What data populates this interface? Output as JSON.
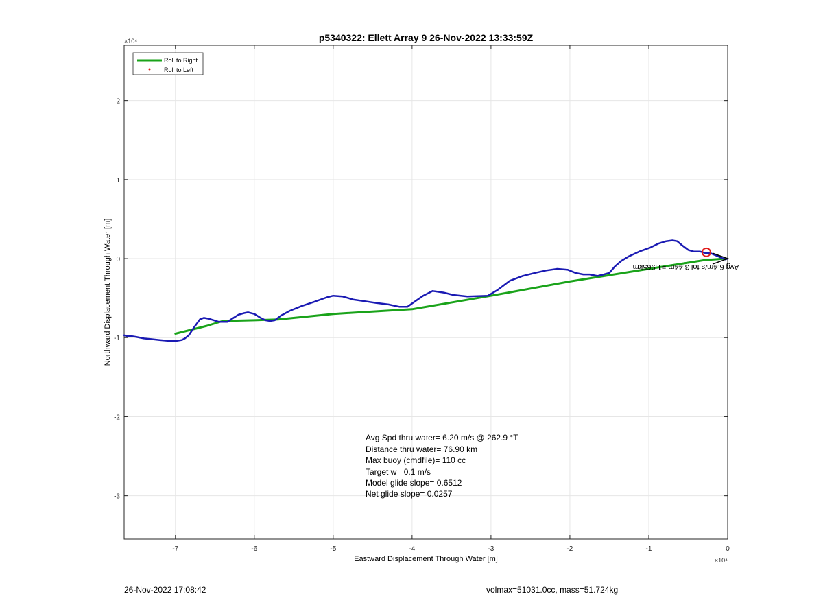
{
  "chart_data": {
    "type": "line",
    "title": "p5340322: Ellett Array 9 26-Nov-2022 13:33:59Z",
    "xlabel": "Eastward Displacement Through Water [m]",
    "ylabel": "Northward Displacement Through Water [m]",
    "x_exponent": "×10⁴",
    "y_exponent": "×10⁴",
    "xlim": [
      -76500,
      0
    ],
    "ylim": [
      -35500,
      27000
    ],
    "xticks": [
      -70000,
      -60000,
      -50000,
      -40000,
      -30000,
      -20000,
      -10000,
      0
    ],
    "xtick_labels": [
      "-7",
      "-6",
      "-5",
      "-4",
      "-3",
      "-2",
      "-1",
      "0"
    ],
    "yticks": [
      -30000,
      -20000,
      -10000,
      0,
      10000,
      20000
    ],
    "ytick_labels": [
      "-3",
      "-2",
      "-1",
      "0",
      "1",
      "2"
    ],
    "grid": true,
    "legend_position": "top-left",
    "legend": [
      {
        "label": "Roll to Right",
        "color": "#1aa31a",
        "marker": "line"
      },
      {
        "label": "Roll to Left",
        "color": "#e01a1a",
        "marker": "dot"
      }
    ],
    "series": [
      {
        "name": "Roll to Right",
        "color": "#1aa31a",
        "x": [
          -250,
          -3000,
          -10000,
          -20000,
          -30000,
          -40000,
          -50000,
          -57000,
          -60000,
          -64000,
          -66000,
          -70000
        ],
        "y": [
          0,
          -200,
          -1300,
          -2900,
          -4700,
          -6400,
          -7000,
          -7700,
          -7800,
          -7900,
          -8500,
          -9500
        ]
      },
      {
        "name": "track",
        "color": "#1a1ab3",
        "x": [
          -76500,
          -76200,
          -75700,
          -75000,
          -74000,
          -73000,
          -72000,
          -71000,
          -70400,
          -69800,
          -69200,
          -68800,
          -68300,
          -67700,
          -66900,
          -66400,
          -65800,
          -64500,
          -63400,
          -62800,
          -62000,
          -61300,
          -60800,
          -60000,
          -59200,
          -58600,
          -58000,
          -57400,
          -56600,
          -55500,
          -54000,
          -52500,
          -50800,
          -50000,
          -48800,
          -47400,
          -46000,
          -44600,
          -43000,
          -41600,
          -40600,
          -39900,
          -38600,
          -37400,
          -36000,
          -34800,
          -33000,
          -30400,
          -29200,
          -27600,
          -26000,
          -24400,
          -23000,
          -21600,
          -20300,
          -19300,
          -18300,
          -17500,
          -16500,
          -15700,
          -15000,
          -14300,
          -13500,
          -12500,
          -11200,
          -9800,
          -8800,
          -7800,
          -7000,
          -6400,
          -5800,
          -5000,
          -4300,
          -3500,
          -2800,
          -2200,
          -1500,
          -800,
          -300,
          0
        ],
        "y": [
          -9700,
          -9800,
          -9800,
          -9900,
          -10100,
          -10200,
          -10300,
          -10400,
          -10400,
          -10400,
          -10300,
          -10100,
          -9700,
          -8800,
          -7700,
          -7500,
          -7600,
          -8000,
          -8000,
          -7600,
          -7100,
          -6900,
          -6800,
          -7000,
          -7500,
          -7800,
          -7900,
          -7800,
          -7200,
          -6600,
          -6000,
          -5500,
          -4900,
          -4700,
          -4800,
          -5200,
          -5400,
          -5600,
          -5800,
          -6100,
          -6100,
          -5600,
          -4700,
          -4100,
          -4300,
          -4600,
          -4800,
          -4700,
          -4000,
          -2800,
          -2200,
          -1800,
          -1500,
          -1300,
          -1400,
          -1800,
          -2000,
          -2000,
          -2200,
          -2000,
          -1800,
          -1000,
          -300,
          300,
          900,
          1400,
          1900,
          2200,
          2300,
          2200,
          1700,
          1100,
          900,
          900,
          700,
          700,
          400,
          100,
          -100,
          0
        ]
      }
    ],
    "markers": [
      {
        "type": "circle",
        "x": -2700,
        "y": 800,
        "color": "#e01a1a"
      }
    ],
    "annotations": {
      "mirrored_text": "Avg 6.4m/s fol 3.44m =1.965km",
      "stats": [
        "Avg Spd thru water=  6.20 m/s @ 262.9 °T",
        "Distance thru water= 76.90 km",
        "Max buoy (cmdfile)= 110 cc",
        "Target w= 0.1 m/s",
        "Model glide slope= 0.6512",
        "Net glide slope= 0.0257"
      ]
    }
  },
  "footer": {
    "timestamp": "26-Nov-2022 17:08:42",
    "info": "volmax=51031.0cc, mass=51.724kg"
  }
}
